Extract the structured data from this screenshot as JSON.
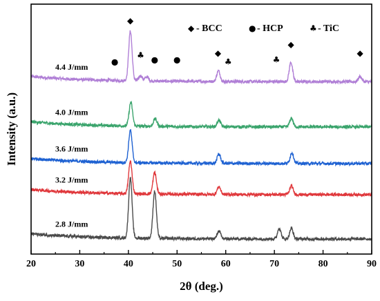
{
  "chart_data": {
    "type": "line",
    "xlabel": "2θ (deg.)",
    "ylabel": "Intensity (a.u.)",
    "xlim": [
      20,
      90
    ],
    "xticks": [
      "20",
      "30",
      "40",
      "50",
      "60",
      "70",
      "80",
      "90"
    ],
    "y_ticks_shown": false,
    "grid": false,
    "legend": {
      "placement": "top-right",
      "items": [
        {
          "symbol": "◆",
          "label": "- BCC"
        },
        {
          "symbol": "●",
          "label": "- HCP"
        },
        {
          "symbol": "♣",
          "label": "- TiC"
        }
      ]
    },
    "series": [
      {
        "name": "4.4 J/mm",
        "color": "#b07fd6",
        "baseline": 4.0,
        "peaks": [
          {
            "x": 40.4,
            "height": 1.15
          },
          {
            "x": 42.5,
            "height": 0.12
          },
          {
            "x": 43.8,
            "height": 0.1
          },
          {
            "x": 58.5,
            "height": 0.25
          },
          {
            "x": 73.4,
            "height": 0.45
          },
          {
            "x": 87.6,
            "height": 0.12
          }
        ]
      },
      {
        "name": "4.0 J/mm",
        "color": "#3aa46c",
        "baseline": 2.95,
        "peaks": [
          {
            "x": 40.5,
            "height": 0.55
          },
          {
            "x": 45.5,
            "height": 0.18
          },
          {
            "x": 58.6,
            "height": 0.15
          },
          {
            "x": 73.5,
            "height": 0.2
          }
        ]
      },
      {
        "name": "3.6 J/mm",
        "color": "#1f62d2",
        "baseline": 2.1,
        "peaks": [
          {
            "x": 40.4,
            "height": 0.75
          },
          {
            "x": 58.6,
            "height": 0.22
          },
          {
            "x": 73.6,
            "height": 0.25
          }
        ]
      },
      {
        "name": "3.2 J/mm",
        "color": "#e0383c",
        "baseline": 1.38,
        "peaks": [
          {
            "x": 40.4,
            "height": 0.75
          },
          {
            "x": 45.4,
            "height": 0.5
          },
          {
            "x": 58.6,
            "height": 0.18
          },
          {
            "x": 73.5,
            "height": 0.2
          }
        ]
      },
      {
        "name": "2.8 J/mm",
        "color": "#4a4a4a",
        "baseline": 0.35,
        "peaks": [
          {
            "x": 40.4,
            "height": 1.4
          },
          {
            "x": 45.4,
            "height": 1.1
          },
          {
            "x": 58.6,
            "height": 0.18
          },
          {
            "x": 71.0,
            "height": 0.25
          },
          {
            "x": 73.5,
            "height": 0.25
          }
        ]
      }
    ],
    "markers": [
      {
        "symbol": "◆",
        "x": 40.4,
        "y": 5.35
      },
      {
        "symbol": "●",
        "x": 37.2,
        "y": 4.4
      },
      {
        "symbol": "♣",
        "x": 42.5,
        "y": 4.55
      },
      {
        "symbol": "●",
        "x": 45.4,
        "y": 4.45
      },
      {
        "symbol": "●",
        "x": 50.0,
        "y": 4.45
      },
      {
        "symbol": "◆",
        "x": 58.4,
        "y": 4.6
      },
      {
        "symbol": "♣",
        "x": 60.5,
        "y": 4.4
      },
      {
        "symbol": "♣",
        "x": 70.4,
        "y": 4.45
      },
      {
        "symbol": "◆",
        "x": 73.4,
        "y": 4.8
      },
      {
        "symbol": "◆",
        "x": 87.6,
        "y": 4.6
      }
    ]
  }
}
